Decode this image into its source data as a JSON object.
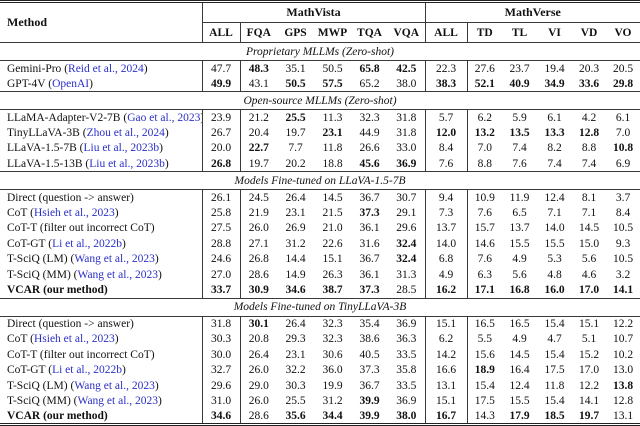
{
  "paper_table": {
    "method_header": "Method",
    "link_color": "#2b30c8",
    "groups": [
      {
        "label": "MathVista",
        "cols": [
          "ALL",
          "FQA",
          "GPS",
          "MWP",
          "TQA",
          "VQA"
        ]
      },
      {
        "label": "MathVerse",
        "cols": [
          "ALL",
          "TD",
          "TL",
          "VI",
          "VD",
          "VO"
        ]
      }
    ],
    "sections": [
      {
        "title": "Proprietary MLLMs (Zero-shot)",
        "rows": [
          {
            "name": "Gemini-Pro",
            "cite": "Reid et al., 2024",
            "bold_name": false,
            "values": [
              "47.7",
              "48.3",
              "35.1",
              "50.5",
              "65.8",
              "42.5",
              "22.3",
              "27.6",
              "23.7",
              "19.4",
              "20.3",
              "20.5"
            ],
            "bold": [
              0,
              1,
              0,
              0,
              1,
              1,
              0,
              0,
              0,
              0,
              0,
              0
            ]
          },
          {
            "name": "GPT-4V",
            "cite": "OpenAI",
            "bold_name": false,
            "values": [
              "49.9",
              "43.1",
              "50.5",
              "57.5",
              "65.2",
              "38.0",
              "38.3",
              "52.1",
              "40.9",
              "34.9",
              "33.6",
              "29.8"
            ],
            "bold": [
              1,
              0,
              1,
              1,
              0,
              0,
              1,
              1,
              1,
              1,
              1,
              1
            ]
          }
        ]
      },
      {
        "title": "Open-source MLLMs (Zero-shot)",
        "rows": [
          {
            "name": "LLaMA-Adapter-V2-7B",
            "cite": "Gao et al., 2023",
            "bold_name": false,
            "values": [
              "23.9",
              "21.2",
              "25.5",
              "11.3",
              "32.3",
              "31.8",
              "5.7",
              "6.2",
              "5.9",
              "6.1",
              "4.2",
              "6.1"
            ],
            "bold": [
              0,
              0,
              1,
              0,
              0,
              0,
              0,
              0,
              0,
              0,
              0,
              0
            ]
          },
          {
            "name": "TinyLLaVA-3B",
            "cite": "Zhou et al., 2024",
            "bold_name": false,
            "values": [
              "26.7",
              "20.4",
              "19.7",
              "23.1",
              "44.9",
              "31.8",
              "12.0",
              "13.2",
              "13.5",
              "13.3",
              "12.8",
              "7.0"
            ],
            "bold": [
              0,
              0,
              0,
              1,
              0,
              0,
              1,
              1,
              1,
              1,
              1,
              0
            ]
          },
          {
            "name": "LLaVA-1.5-7B",
            "cite": "Liu et al., 2023b",
            "bold_name": false,
            "values": [
              "20.0",
              "22.7",
              "7.7",
              "11.8",
              "26.6",
              "33.0",
              "8.4",
              "7.0",
              "7.4",
              "8.2",
              "8.8",
              "10.8"
            ],
            "bold": [
              0,
              1,
              0,
              0,
              0,
              0,
              0,
              0,
              0,
              0,
              0,
              1
            ]
          },
          {
            "name": "LLaVA-1.5-13B",
            "cite": "Liu et al., 2023b",
            "bold_name": false,
            "values": [
              "26.8",
              "19.7",
              "20.2",
              "18.8",
              "45.6",
              "36.9",
              "7.6",
              "8.8",
              "7.6",
              "7.4",
              "7.4",
              "6.9"
            ],
            "bold": [
              1,
              0,
              0,
              0,
              1,
              1,
              0,
              0,
              0,
              0,
              0,
              0
            ]
          }
        ]
      },
      {
        "title": "Models Fine-tuned on LLaVA-1.5-7B",
        "rows": [
          {
            "name": "Direct (question -> answer)",
            "cite": null,
            "bold_name": false,
            "values": [
              "26.1",
              "24.5",
              "26.4",
              "14.5",
              "36.7",
              "30.7",
              "9.4",
              "10.9",
              "11.9",
              "12.4",
              "8.1",
              "3.7"
            ],
            "bold": [
              0,
              0,
              0,
              0,
              0,
              0,
              0,
              0,
              0,
              0,
              0,
              0
            ]
          },
          {
            "name": "CoT",
            "cite": "Hsieh et al., 2023",
            "bold_name": false,
            "values": [
              "25.8",
              "21.9",
              "23.1",
              "21.5",
              "37.3",
              "29.1",
              "7.3",
              "7.6",
              "6.5",
              "7.1",
              "7.1",
              "8.4"
            ],
            "bold": [
              0,
              0,
              0,
              0,
              1,
              0,
              0,
              0,
              0,
              0,
              0,
              0
            ]
          },
          {
            "name": "CoT-T (filter out incorrect CoT)",
            "cite": null,
            "bold_name": false,
            "values": [
              "27.5",
              "26.0",
              "26.9",
              "21.0",
              "36.1",
              "29.6",
              "13.7",
              "15.7",
              "13.7",
              "14.0",
              "14.5",
              "10.5"
            ],
            "bold": [
              0,
              0,
              0,
              0,
              0,
              0,
              0,
              0,
              0,
              0,
              0,
              0
            ]
          },
          {
            "name": "CoT-GT",
            "cite": "Li et al., 2022b",
            "bold_name": false,
            "values": [
              "28.8",
              "27.1",
              "31.2",
              "22.6",
              "31.6",
              "32.4",
              "14.0",
              "14.6",
              "15.5",
              "15.5",
              "15.0",
              "9.3"
            ],
            "bold": [
              0,
              0,
              0,
              0,
              0,
              1,
              0,
              0,
              0,
              0,
              0,
              0
            ]
          },
          {
            "name": "T-SciQ (LM)",
            "cite": "Wang et al., 2023",
            "bold_name": false,
            "values": [
              "24.6",
              "26.8",
              "14.4",
              "15.1",
              "36.7",
              "32.4",
              "6.8",
              "7.6",
              "4.9",
              "5.3",
              "5.6",
              "10.5"
            ],
            "bold": [
              0,
              0,
              0,
              0,
              0,
              1,
              0,
              0,
              0,
              0,
              0,
              0
            ]
          },
          {
            "name": "T-SciQ (MM)",
            "cite": "Wang et al., 2023",
            "bold_name": false,
            "values": [
              "27.0",
              "28.6",
              "14.9",
              "26.3",
              "36.1",
              "31.3",
              "4.9",
              "6.3",
              "5.6",
              "4.8",
              "4.6",
              "3.2"
            ],
            "bold": [
              0,
              0,
              0,
              0,
              0,
              0,
              0,
              0,
              0,
              0,
              0,
              0
            ]
          },
          {
            "name": "VCAR (our method)",
            "cite": null,
            "bold_name": true,
            "values": [
              "33.7",
              "30.9",
              "34.6",
              "38.7",
              "37.3",
              "28.5",
              "16.2",
              "17.1",
              "16.8",
              "16.0",
              "17.0",
              "14.1"
            ],
            "bold": [
              1,
              1,
              1,
              1,
              1,
              0,
              1,
              1,
              1,
              1,
              1,
              1
            ]
          }
        ]
      },
      {
        "title": "Models Fine-tuned on TinyLLaVA-3B",
        "rows": [
          {
            "name": "Direct (question -> answer)",
            "cite": null,
            "bold_name": false,
            "values": [
              "31.8",
              "30.1",
              "26.4",
              "32.3",
              "35.4",
              "36.9",
              "15.1",
              "16.5",
              "16.5",
              "15.4",
              "15.1",
              "12.2"
            ],
            "bold": [
              0,
              1,
              0,
              0,
              0,
              0,
              0,
              0,
              0,
              0,
              0,
              0
            ]
          },
          {
            "name": "CoT",
            "cite": "Hsieh et al., 2023",
            "bold_name": false,
            "values": [
              "30.3",
              "20.8",
              "29.3",
              "32.3",
              "38.6",
              "36.3",
              "6.2",
              "5.5",
              "4.9",
              "4.7",
              "5.1",
              "10.7"
            ],
            "bold": [
              0,
              0,
              0,
              0,
              0,
              0,
              0,
              0,
              0,
              0,
              0,
              0
            ]
          },
          {
            "name": "CoT-T (filter out incorrect CoT)",
            "cite": null,
            "bold_name": false,
            "values": [
              "30.0",
              "26.4",
              "23.1",
              "30.6",
              "40.5",
              "33.5",
              "14.2",
              "15.6",
              "14.5",
              "15.4",
              "15.2",
              "10.2"
            ],
            "bold": [
              0,
              0,
              0,
              0,
              0,
              0,
              0,
              0,
              0,
              0,
              0,
              0
            ]
          },
          {
            "name": "CoT-GT",
            "cite": "Li et al., 2022b",
            "bold_name": false,
            "values": [
              "32.7",
              "26.0",
              "32.2",
              "36.0",
              "37.3",
              "35.8",
              "16.6",
              "18.9",
              "16.4",
              "17.5",
              "17.0",
              "13.0"
            ],
            "bold": [
              0,
              0,
              0,
              0,
              0,
              0,
              0,
              1,
              0,
              0,
              0,
              0
            ]
          },
          {
            "name": "T-SciQ (LM)",
            "cite": "Wang et al., 2023",
            "bold_name": false,
            "values": [
              "29.6",
              "29.0",
              "30.3",
              "19.9",
              "36.7",
              "33.5",
              "13.1",
              "15.4",
              "12.4",
              "11.8",
              "12.2",
              "13.8"
            ],
            "bold": [
              0,
              0,
              0,
              0,
              0,
              0,
              0,
              0,
              0,
              0,
              0,
              1
            ]
          },
          {
            "name": "T-SciQ (MM)",
            "cite": "Wang et al., 2023",
            "bold_name": false,
            "values": [
              "31.0",
              "26.0",
              "25.5",
              "31.2",
              "39.9",
              "36.9",
              "15.1",
              "17.5",
              "15.5",
              "15.4",
              "14.1",
              "12.8"
            ],
            "bold": [
              0,
              0,
              0,
              0,
              1,
              0,
              0,
              0,
              0,
              0,
              0,
              0
            ]
          },
          {
            "name": "VCAR (our method)",
            "cite": null,
            "bold_name": true,
            "values": [
              "34.6",
              "28.6",
              "35.6",
              "34.4",
              "39.9",
              "38.0",
              "16.7",
              "14.3",
              "17.9",
              "18.5",
              "19.7",
              "13.1"
            ],
            "bold": [
              1,
              0,
              1,
              1,
              1,
              1,
              1,
              0,
              1,
              1,
              1,
              0
            ]
          }
        ]
      }
    ]
  }
}
